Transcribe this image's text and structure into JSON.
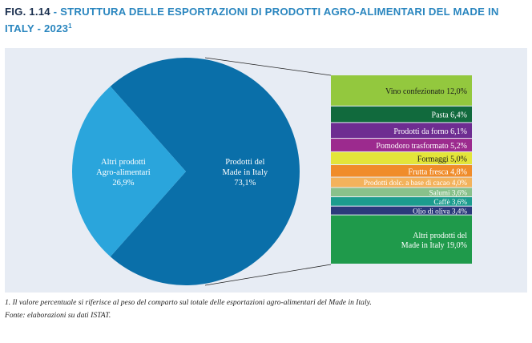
{
  "figure": {
    "number": "FIG. 1.14",
    "separator": "-",
    "title": "STRUTTURA DELLE ESPORTAZIONI DI PRODOTTI AGRO-ALIMENTARI DEL MADE IN ITALY",
    "year": "- 2023",
    "footnote_marker": "1"
  },
  "footnote": "1. Il valore percentuale si riferisce al peso del comparto sul totale delle esportazioni agro-alimentari del Made in Italy.",
  "source": "Fonte: elaborazioni su dati ISTAT.",
  "colors": {
    "panel_bg": "#e7ecf4",
    "pie_made_in_italy": "#0a6fa9",
    "pie_altri": "#2aa5dc"
  },
  "chart_data": [
    {
      "type": "pie",
      "slices": [
        {
          "label": "Prodotti del Made in Italy",
          "label_lines": [
            "Prodotti del",
            "Made in Italy"
          ],
          "value": 73.1,
          "value_label": "73,1%",
          "color": "#0a6fa9"
        },
        {
          "label": "Altri prodotti Agro-alimentari",
          "label_lines": [
            "Altri prodotti",
            "Agro-alimentari"
          ],
          "value": 26.9,
          "value_label": "26,9%",
          "color": "#2aa5dc"
        }
      ]
    },
    {
      "type": "bar",
      "orientation": "stacked-column",
      "segments": [
        {
          "label": "Vino confezionato 12,0%",
          "value": 12.0,
          "color": "#93c83e",
          "text_color": "#1a1a1a"
        },
        {
          "label": "Pasta 6,4%",
          "value": 6.4,
          "color": "#116a3d",
          "text_color": "#ffffff"
        },
        {
          "label": "Prodotti da forno 6,1%",
          "value": 6.1,
          "color": "#6e2d91",
          "text_color": "#ffffff"
        },
        {
          "label": "Pomodoro trasformato 5,2%",
          "value": 5.2,
          "color": "#9c2a8e",
          "text_color": "#ffffff"
        },
        {
          "label": "Formaggi 5,0%",
          "value": 5.0,
          "color": "#e3e53a",
          "text_color": "#1a1a1a"
        },
        {
          "label": "Frutta fresca 4,8%",
          "value": 4.8,
          "color": "#f08c2a",
          "text_color": "#ffffff"
        },
        {
          "label": "Prodotti dolc. a base di cacao 4,0%",
          "value": 4.0,
          "color": "#f3b25c",
          "text_color": "#ffffff"
        },
        {
          "label": "Salumi 3,6%",
          "value": 3.6,
          "color": "#89c18b",
          "text_color": "#ffffff"
        },
        {
          "label": "Caffè 3,6%",
          "value": 3.6,
          "color": "#1c9c8e",
          "text_color": "#ffffff"
        },
        {
          "label": "Olio di oliva 3,4%",
          "value": 3.4,
          "color": "#2b3a7b",
          "text_color": "#ffffff"
        },
        {
          "label": "Altri prodotti del Made in Italy 19,0%",
          "label_lines": [
            "Altri prodotti del",
            "Made in Italy 19,0%"
          ],
          "value": 19.0,
          "color": "#1f9a4b",
          "text_color": "#ffffff"
        }
      ]
    }
  ]
}
